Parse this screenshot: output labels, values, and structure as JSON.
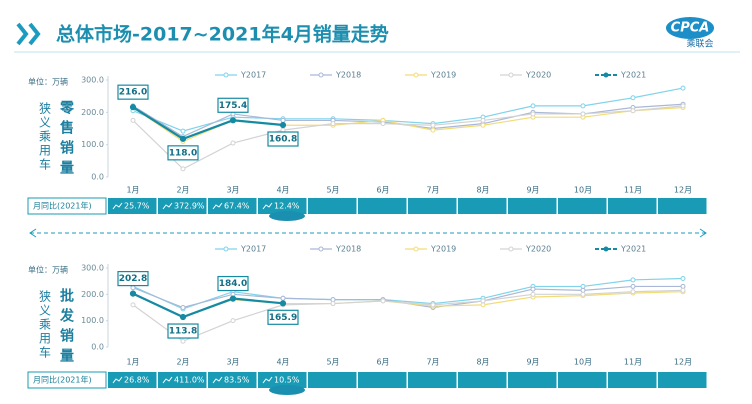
{
  "header": {
    "title": "总体市场-2017~2021年4月销量走势",
    "logo": "CPCA",
    "logo_sub": "乘联会"
  },
  "chart_data": [
    {
      "type": "line",
      "title": "零售销量",
      "side_label": "狭义乘用车",
      "unit": "单位：万辆",
      "categories": [
        "1月",
        "2月",
        "3月",
        "4月",
        "5月",
        "6月",
        "7月",
        "8月",
        "9月",
        "10月",
        "11月",
        "12月"
      ],
      "ylim": [
        0,
        300
      ],
      "yticks": [
        {
          "value": 0,
          "label": "0.0"
        },
        {
          "value": 100,
          "label": "100.0"
        },
        {
          "value": 200,
          "label": "200.0"
        },
        {
          "value": 300,
          "label": "300.0"
        }
      ],
      "series": [
        {
          "name": "Y2017",
          "color": "#7fd3ea",
          "values": [
            205,
            142,
            185,
            180,
            180,
            175,
            165,
            185,
            220,
            220,
            245,
            275
          ]
        },
        {
          "name": "Y2018",
          "color": "#a9b8d6",
          "values": [
            220,
            125,
            195,
            175,
            175,
            170,
            150,
            165,
            200,
            195,
            215,
            225
          ]
        },
        {
          "name": "Y2019",
          "color": "#f2dc78",
          "values": [
            215,
            110,
            175,
            160,
            160,
            175,
            145,
            160,
            185,
            185,
            205,
            215
          ]
        },
        {
          "name": "Y2020",
          "color": "#d3d3d3",
          "values": [
            175,
            25,
            105,
            145,
            165,
            165,
            160,
            175,
            195,
            195,
            205,
            220
          ]
        },
        {
          "name": "Y2021",
          "color": "#168aa3",
          "values": [
            216,
            118,
            175.4,
            160.8,
            null,
            null,
            null,
            null,
            null,
            null,
            null,
            null
          ],
          "value_labels": [
            "216.0",
            "118.0",
            "175.4",
            "160.8",
            null,
            null,
            null,
            null,
            null,
            null,
            null,
            null
          ]
        }
      ],
      "yoy": {
        "label": "月同比(2021年)",
        "values": [
          25.7,
          372.9,
          67.4,
          12.4
        ],
        "value_labels": [
          "25.7%",
          "372.9%",
          "67.4%",
          "12.4%"
        ]
      }
    },
    {
      "type": "line",
      "title": "批发销量",
      "side_label": "狭义乘用车",
      "unit": "单位：万辆",
      "categories": [
        "1月",
        "2月",
        "3月",
        "4月",
        "5月",
        "6月",
        "7月",
        "8月",
        "9月",
        "10月",
        "11月",
        "12月"
      ],
      "ylim": [
        0,
        300
      ],
      "yticks": [
        {
          "value": 0,
          "label": "0.0"
        },
        {
          "value": 100,
          "label": "100.0"
        },
        {
          "value": 200,
          "label": "200.0"
        },
        {
          "value": 300,
          "label": "300.0"
        }
      ],
      "series": [
        {
          "name": "Y2017",
          "color": "#7fd3ea",
          "values": [
            230,
            145,
            210,
            185,
            180,
            180,
            165,
            185,
            230,
            230,
            255,
            260
          ]
        },
        {
          "name": "Y2018",
          "color": "#a9b8d6",
          "values": [
            225,
            150,
            200,
            185,
            180,
            180,
            150,
            175,
            220,
            215,
            230,
            230
          ]
        },
        {
          "name": "Y2019",
          "color": "#f2dc78",
          "values": [
            200,
            115,
            180,
            165,
            165,
            175,
            155,
            160,
            190,
            195,
            205,
            210
          ]
        },
        {
          "name": "Y2020",
          "color": "#d3d3d3",
          "values": [
            160,
            22,
            100,
            160,
            165,
            175,
            160,
            175,
            200,
            200,
            210,
            215
          ]
        },
        {
          "name": "Y2021",
          "color": "#168aa3",
          "values": [
            202.8,
            113.8,
            184,
            165.9,
            null,
            null,
            null,
            null,
            null,
            null,
            null,
            null
          ],
          "value_labels": [
            "202.8",
            "113.8",
            "184.0",
            "165.9",
            null,
            null,
            null,
            null,
            null,
            null,
            null,
            null
          ]
        }
      ],
      "yoy": {
        "label": "月同比(2021年)",
        "values": [
          26.8,
          411.0,
          83.5,
          10.5
        ],
        "value_labels": [
          "26.8%",
          "411.0%",
          "83.5%",
          "10.5%"
        ]
      }
    }
  ]
}
